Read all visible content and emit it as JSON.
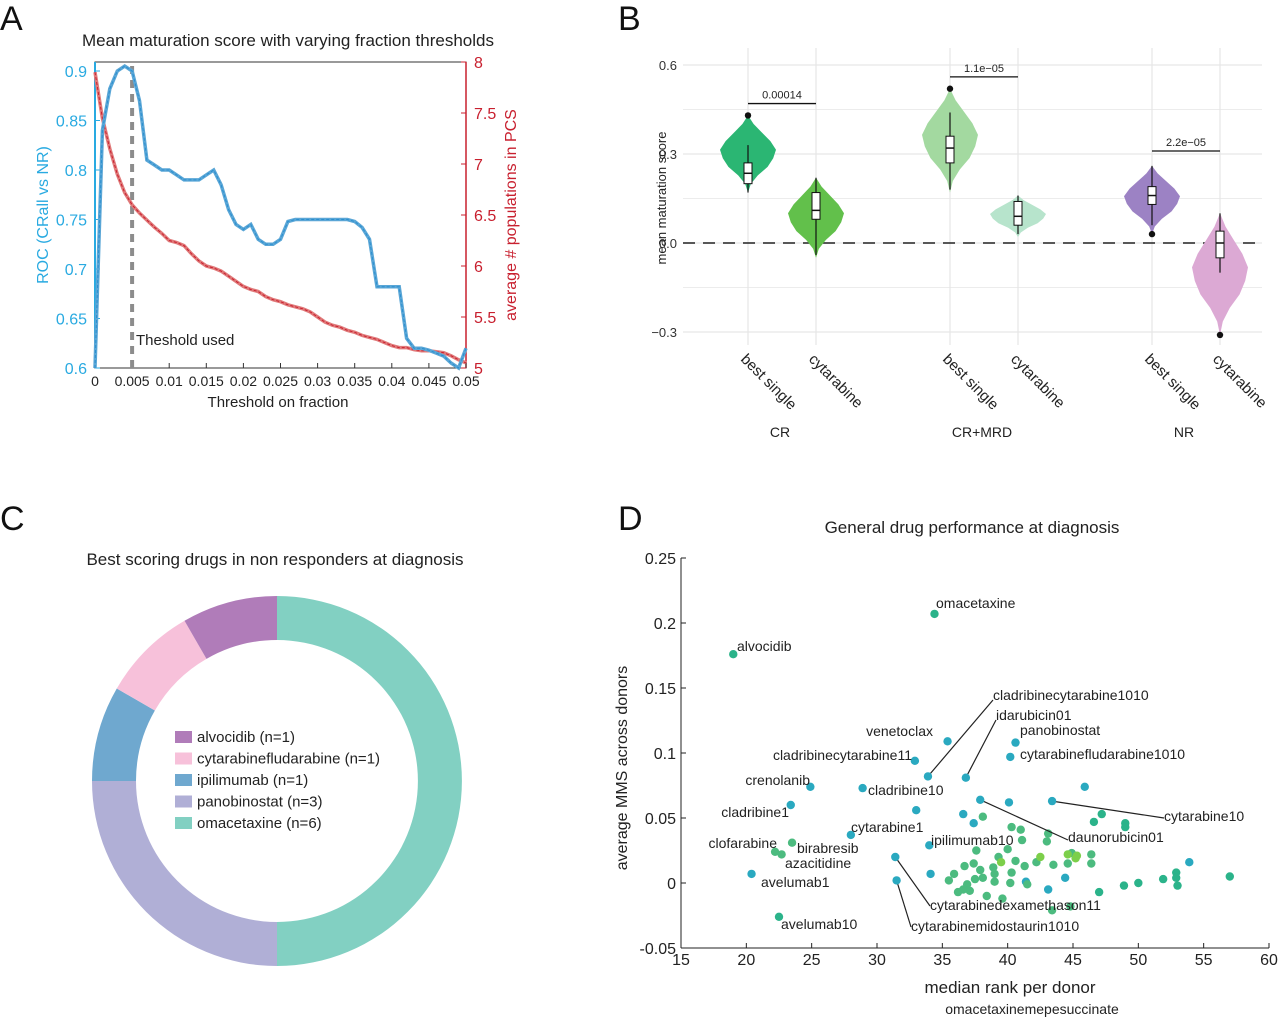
{
  "panels": {
    "a": {
      "letter": "A"
    },
    "b": {
      "letter": "B"
    },
    "c": {
      "letter": "C"
    },
    "d": {
      "letter": "D"
    }
  },
  "colors": {
    "cyan": "#29aae1",
    "red": "#c8202f",
    "lightblue": "#5aa6d6",
    "lightred": "#e07a7a",
    "gray": "#8c8c8c",
    "grid": "#e6e6e6"
  },
  "chart_data": [
    {
      "panel": "A",
      "type": "line",
      "title": "Mean maturation score with varying fraction thresholds",
      "xlabel": "Threshold on fraction",
      "ylabel": "ROC (CRall vs NR)",
      "ylabel_right": "average # populations in PCS",
      "xlim": [
        0,
        0.05
      ],
      "ylim": [
        0.6,
        0.92
      ],
      "ylim_right": [
        5,
        8
      ],
      "x_ticks": [
        "0",
        "0.005",
        "0.01",
        "0.015",
        "0.02",
        "0.025",
        "0.03",
        "0.035",
        "0.04",
        "0.045",
        "0.05"
      ],
      "y_ticks": [
        "0.6",
        "0.65",
        "0.7",
        "0.75",
        "0.8",
        "0.85",
        "0.9"
      ],
      "y_ticks_right": [
        "5",
        "5.5",
        "6",
        "6.5",
        "7",
        "7.5",
        "8"
      ],
      "annotation": "Theshold used",
      "threshold_x": 0.005,
      "series": [
        {
          "axis": "left",
          "x": [
            0,
            0.001,
            0.002,
            0.003,
            0.004,
            0.005,
            0.006,
            0.007,
            0.008,
            0.009,
            0.01,
            0.011,
            0.012,
            0.013,
            0.014,
            0.015,
            0.016,
            0.017,
            0.018,
            0.019,
            0.02,
            0.021,
            0.022,
            0.023,
            0.024,
            0.025,
            0.026,
            0.027,
            0.028,
            0.029,
            0.03,
            0.031,
            0.032,
            0.033,
            0.034,
            0.035,
            0.036,
            0.037,
            0.038,
            0.039,
            0.04,
            0.041,
            0.042,
            0.043,
            0.044,
            0.045,
            0.046,
            0.047,
            0.048,
            0.049,
            0.05
          ],
          "values": [
            0.6,
            0.84,
            0.882,
            0.9,
            0.905,
            0.9,
            0.87,
            0.81,
            0.805,
            0.8,
            0.8,
            0.795,
            0.79,
            0.79,
            0.79,
            0.795,
            0.8,
            0.785,
            0.76,
            0.745,
            0.74,
            0.745,
            0.73,
            0.725,
            0.725,
            0.73,
            0.748,
            0.75,
            0.75,
            0.75,
            0.75,
            0.75,
            0.75,
            0.75,
            0.75,
            0.748,
            0.742,
            0.73,
            0.682,
            0.682,
            0.682,
            0.682,
            0.63,
            0.62,
            0.62,
            0.618,
            0.615,
            0.612,
            0.605,
            0.6,
            0.62
          ]
        },
        {
          "axis": "right",
          "x": [
            0,
            0.001,
            0.002,
            0.003,
            0.004,
            0.005,
            0.006,
            0.007,
            0.008,
            0.009,
            0.01,
            0.011,
            0.012,
            0.013,
            0.014,
            0.015,
            0.016,
            0.017,
            0.018,
            0.019,
            0.02,
            0.021,
            0.022,
            0.023,
            0.024,
            0.025,
            0.026,
            0.027,
            0.028,
            0.029,
            0.03,
            0.031,
            0.032,
            0.033,
            0.034,
            0.035,
            0.036,
            0.037,
            0.038,
            0.039,
            0.04,
            0.041,
            0.042,
            0.043,
            0.044,
            0.045,
            0.046,
            0.047,
            0.048,
            0.049,
            0.05
          ],
          "values": [
            7.9,
            7.45,
            7.15,
            6.9,
            6.72,
            6.6,
            6.52,
            6.45,
            6.38,
            6.32,
            6.25,
            6.23,
            6.2,
            6.12,
            6.05,
            6.0,
            5.98,
            5.95,
            5.9,
            5.85,
            5.8,
            5.77,
            5.75,
            5.7,
            5.67,
            5.65,
            5.62,
            5.6,
            5.58,
            5.55,
            5.5,
            5.45,
            5.42,
            5.4,
            5.37,
            5.35,
            5.32,
            5.3,
            5.28,
            5.25,
            5.22,
            5.2,
            5.2,
            5.18,
            5.17,
            5.17,
            5.16,
            5.15,
            5.12,
            5.08,
            5.05
          ]
        }
      ]
    },
    {
      "panel": "B",
      "type": "violin",
      "ylabel": "mean maturation score",
      "ylim": [
        -0.36,
        0.62
      ],
      "y_ticks": [
        "0.6",
        "0.3",
        "0.0",
        "−0.3"
      ],
      "groups": [
        "CR",
        "CR+MRD",
        "NR"
      ],
      "categories": [
        "best single",
        "cytarabine",
        "best single",
        "cytarabine",
        "best single",
        "cytarabine"
      ],
      "violins": [
        {
          "group": "CR",
          "label": "best single",
          "color": "#2bb673",
          "min": 0.17,
          "max": 0.43,
          "q1": 0.2,
          "median": 0.235,
          "q3": 0.27,
          "wlo": 0.17,
          "whi": 0.33,
          "outliers": [
            0.43
          ]
        },
        {
          "group": "CR",
          "label": "cytarabine",
          "color": "#62c04b",
          "min": -0.05,
          "max": 0.22,
          "q1": 0.08,
          "median": 0.11,
          "q3": 0.17,
          "wlo": -0.04,
          "whi": 0.22,
          "outliers": []
        },
        {
          "group": "CR+MRD",
          "label": "best single",
          "color": "#a3d9a0",
          "min": 0.17,
          "max": 0.52,
          "q1": 0.27,
          "median": 0.32,
          "q3": 0.36,
          "wlo": 0.18,
          "whi": 0.44,
          "outliers": [
            0.52
          ]
        },
        {
          "group": "CR+MRD",
          "label": "cytarabine",
          "color": "#b7e4cc",
          "min": 0.02,
          "max": 0.16,
          "q1": 0.06,
          "median": 0.09,
          "q3": 0.14,
          "wlo": 0.03,
          "whi": 0.16,
          "outliers": []
        },
        {
          "group": "NR",
          "label": "best single",
          "color": "#9c82c4",
          "min": 0.03,
          "max": 0.26,
          "q1": 0.13,
          "median": 0.16,
          "q3": 0.19,
          "wlo": 0.06,
          "whi": 0.26,
          "outliers": [
            0.03
          ]
        },
        {
          "group": "NR",
          "label": "cytarabine",
          "color": "#dca9d4",
          "min": -0.31,
          "max": 0.1,
          "q1": -0.05,
          "median": 0.0,
          "q3": 0.04,
          "wlo": -0.1,
          "whi": 0.1,
          "outliers": [
            -0.31
          ]
        }
      ],
      "pvalues": [
        {
          "group": "CR",
          "label": "0.00014",
          "y": 0.47
        },
        {
          "group": "CR+MRD",
          "label": "1.1e−05",
          "y": 0.56
        },
        {
          "group": "NR",
          "label": "2.2e−05",
          "y": 0.31
        }
      ]
    },
    {
      "panel": "C",
      "type": "pie",
      "title": "Best scoring drugs in non responders at diagnosis",
      "slices": [
        {
          "label": "omacetaxine (n=6)",
          "value": 6,
          "color": "#82d0c2"
        },
        {
          "label": "panobinostat (n=3)",
          "value": 3,
          "color": "#b0afd6"
        },
        {
          "label": "ipilimumab (n=1)",
          "value": 1,
          "color": "#6fa8cf"
        },
        {
          "label": "cytarabinefludarabine (n=1)",
          "value": 1,
          "color": "#f7c1da"
        },
        {
          "label": "alvocidib (n=1)",
          "value": 1,
          "color": "#b07cb9"
        }
      ]
    },
    {
      "panel": "D",
      "type": "scatter",
      "title": "General drug performance at diagnosis",
      "xlabel": "median rank per donor",
      "ylabel": "average MMS across donors",
      "footer": "omacetaxinemepesuccinate",
      "xlim": [
        15,
        60
      ],
      "ylim": [
        -0.05,
        0.25
      ],
      "x_ticks": [
        "15",
        "20",
        "25",
        "30",
        "35",
        "40",
        "45",
        "50",
        "55",
        "60"
      ],
      "y_ticks": [
        "-0.05",
        "0",
        "0.05",
        "0.1",
        "0.15",
        "0.2",
        "0.25"
      ],
      "labeled_points": [
        {
          "name": "omacetaxine",
          "x": 34.4,
          "y": 0.207,
          "color": "#2bb38a"
        },
        {
          "name": "alvocidib",
          "x": 19.0,
          "y": 0.176,
          "color": "#2bb38a"
        },
        {
          "name": "cladribinecytarabine1010",
          "x": 33.9,
          "y": 0.082,
          "color": "#2aa9c0"
        },
        {
          "name": "idarubicin01",
          "x": 36.8,
          "y": 0.081,
          "color": "#2aa9c0"
        },
        {
          "name": "panobinostat",
          "x": 40.6,
          "y": 0.108,
          "color": "#2aa9c0"
        },
        {
          "name": "cytarabinefludarabine1010",
          "x": 40.2,
          "y": 0.097,
          "color": "#2aa9c0"
        },
        {
          "name": "venetoclax",
          "x": 35.4,
          "y": 0.109,
          "color": "#2aa9c0"
        },
        {
          "name": "cladribinecytarabine11",
          "x": 32.9,
          "y": 0.094,
          "color": "#2aa9c0"
        },
        {
          "name": "crenolanib",
          "x": 24.9,
          "y": 0.074,
          "color": "#2aa9c0"
        },
        {
          "name": "cladribine10",
          "x": 28.9,
          "y": 0.073,
          "color": "#2aa9c0"
        },
        {
          "name": "cladribine1",
          "x": 23.4,
          "y": 0.06,
          "color": "#2aa9c0"
        },
        {
          "name": "cytarabine10",
          "x": 43.4,
          "y": 0.063,
          "color": "#2aa9c0"
        },
        {
          "name": "daunorubicin01",
          "x": 37.9,
          "y": 0.064,
          "color": "#2aa9c0"
        },
        {
          "name": "cytarabine1",
          "x": 28.0,
          "y": 0.037,
          "color": "#2aa9c0"
        },
        {
          "name": "ipilimumab10",
          "x": 34.0,
          "y": 0.029,
          "color": "#2aa9c0"
        },
        {
          "name": "clofarabine",
          "x": 22.2,
          "y": 0.024,
          "color": "#4cbb7f"
        },
        {
          "name": "birabresib",
          "x": 23.5,
          "y": 0.031,
          "color": "#4cbb7f"
        },
        {
          "name": "azacitidine",
          "x": 22.7,
          "y": 0.022,
          "color": "#4cbb7f"
        },
        {
          "name": "avelumab1",
          "x": 20.4,
          "y": 0.007,
          "color": "#2aa9c0"
        },
        {
          "name": "avelumab10",
          "x": 22.5,
          "y": -0.026,
          "color": "#2bb38a"
        },
        {
          "name": "cytarabinedexamethason11",
          "x": 31.4,
          "y": 0.02,
          "color": "#2aa9c0"
        },
        {
          "name": "cytarabinemidostaurin1010",
          "x": 31.5,
          "y": 0.002,
          "color": "#2aa9c0"
        }
      ],
      "other_points": [
        {
          "x": 33.0,
          "y": 0.056,
          "color": "#2aa9c0"
        },
        {
          "x": 36.6,
          "y": 0.053,
          "color": "#2aa9c0"
        },
        {
          "x": 40.1,
          "y": 0.062,
          "color": "#2aa9c0"
        },
        {
          "x": 45.9,
          "y": 0.074,
          "color": "#2aa9c0"
        },
        {
          "x": 53.9,
          "y": 0.016,
          "color": "#2aa9c0"
        },
        {
          "x": 37.4,
          "y": 0.046,
          "color": "#2aa9c0"
        },
        {
          "x": 34.1,
          "y": 0.007,
          "color": "#2aa9c0"
        },
        {
          "x": 44.4,
          "y": 0.004,
          "color": "#2aa9c0"
        },
        {
          "x": 41.4,
          "y": 0.001,
          "color": "#2aa9c0"
        },
        {
          "x": 43.1,
          "y": -0.005,
          "color": "#2aa9c0"
        },
        {
          "x": 57.0,
          "y": 0.005,
          "color": "#2bb38a"
        },
        {
          "x": 50.0,
          "y": 0.0,
          "color": "#2bb38a"
        },
        {
          "x": 48.9,
          "y": -0.002,
          "color": "#2bb38a"
        },
        {
          "x": 47.2,
          "y": 0.053,
          "color": "#2bb38a"
        },
        {
          "x": 49.0,
          "y": 0.046,
          "color": "#2bb38a"
        },
        {
          "x": 49.0,
          "y": 0.043,
          "color": "#2bb38a"
        },
        {
          "x": 46.6,
          "y": 0.047,
          "color": "#2bb38a"
        },
        {
          "x": 47.0,
          "y": -0.007,
          "color": "#2bb38a"
        },
        {
          "x": 52.9,
          "y": 0.008,
          "color": "#2bb38a"
        },
        {
          "x": 51.9,
          "y": 0.003,
          "color": "#2bb38a"
        },
        {
          "x": 53.0,
          "y": -0.002,
          "color": "#2bb38a"
        },
        {
          "x": 52.9,
          "y": 0.004,
          "color": "#2bb38a"
        },
        {
          "x": 38.1,
          "y": 0.051,
          "color": "#4cbb7f"
        },
        {
          "x": 40.3,
          "y": 0.043,
          "color": "#4cbb7f"
        },
        {
          "x": 41.0,
          "y": 0.041,
          "color": "#4cbb7f"
        },
        {
          "x": 43.1,
          "y": 0.038,
          "color": "#4cbb7f"
        },
        {
          "x": 41.1,
          "y": 0.033,
          "color": "#4cbb7f"
        },
        {
          "x": 43.0,
          "y": 0.032,
          "color": "#4cbb7f"
        },
        {
          "x": 40.0,
          "y": 0.026,
          "color": "#4cbb7f"
        },
        {
          "x": 37.6,
          "y": 0.025,
          "color": "#4cbb7f"
        },
        {
          "x": 44.9,
          "y": 0.023,
          "color": "#4cbb7f"
        },
        {
          "x": 46.4,
          "y": 0.022,
          "color": "#4cbb7f"
        },
        {
          "x": 39.3,
          "y": 0.02,
          "color": "#4cbb7f"
        },
        {
          "x": 40.6,
          "y": 0.017,
          "color": "#4cbb7f"
        },
        {
          "x": 42.2,
          "y": 0.016,
          "color": "#4cbb7f"
        },
        {
          "x": 44.6,
          "y": 0.015,
          "color": "#4cbb7f"
        },
        {
          "x": 46.4,
          "y": 0.015,
          "color": "#4cbb7f"
        },
        {
          "x": 43.5,
          "y": 0.014,
          "color": "#4cbb7f"
        },
        {
          "x": 37.4,
          "y": 0.015,
          "color": "#4cbb7f"
        },
        {
          "x": 36.7,
          "y": 0.013,
          "color": "#4cbb7f"
        },
        {
          "x": 41.3,
          "y": 0.013,
          "color": "#4cbb7f"
        },
        {
          "x": 38.9,
          "y": 0.012,
          "color": "#4cbb7f"
        },
        {
          "x": 37.9,
          "y": 0.01,
          "color": "#4cbb7f"
        },
        {
          "x": 40.3,
          "y": 0.008,
          "color": "#4cbb7f"
        },
        {
          "x": 39.0,
          "y": 0.007,
          "color": "#4cbb7f"
        },
        {
          "x": 35.9,
          "y": 0.007,
          "color": "#4cbb7f"
        },
        {
          "x": 38.1,
          "y": 0.004,
          "color": "#4cbb7f"
        },
        {
          "x": 37.5,
          "y": 0.003,
          "color": "#4cbb7f"
        },
        {
          "x": 35.5,
          "y": 0.002,
          "color": "#4cbb7f"
        },
        {
          "x": 39.0,
          "y": 0.001,
          "color": "#4cbb7f"
        },
        {
          "x": 40.2,
          "y": 0.0,
          "color": "#4cbb7f"
        },
        {
          "x": 36.9,
          "y": -0.001,
          "color": "#4cbb7f"
        },
        {
          "x": 41.5,
          "y": -0.001,
          "color": "#4cbb7f"
        },
        {
          "x": 36.6,
          "y": -0.005,
          "color": "#4cbb7f"
        },
        {
          "x": 37.1,
          "y": -0.006,
          "color": "#4cbb7f"
        },
        {
          "x": 36.2,
          "y": -0.007,
          "color": "#4cbb7f"
        },
        {
          "x": 38.4,
          "y": -0.01,
          "color": "#4cbb7f"
        },
        {
          "x": 39.6,
          "y": -0.012,
          "color": "#4cbb7f"
        },
        {
          "x": 44.8,
          "y": -0.018,
          "color": "#4cbb7f"
        },
        {
          "x": 43.4,
          "y": -0.021,
          "color": "#4cbb7f"
        },
        {
          "x": 45.2,
          "y": 0.019,
          "color": "#7ccf4a"
        },
        {
          "x": 45.3,
          "y": 0.021,
          "color": "#7ccf4a"
        },
        {
          "x": 44.6,
          "y": 0.022,
          "color": "#7ccf4a"
        },
        {
          "x": 39.5,
          "y": 0.016,
          "color": "#7ccf4a"
        },
        {
          "x": 42.5,
          "y": 0.02,
          "color": "#7ccf4a"
        }
      ]
    }
  ]
}
